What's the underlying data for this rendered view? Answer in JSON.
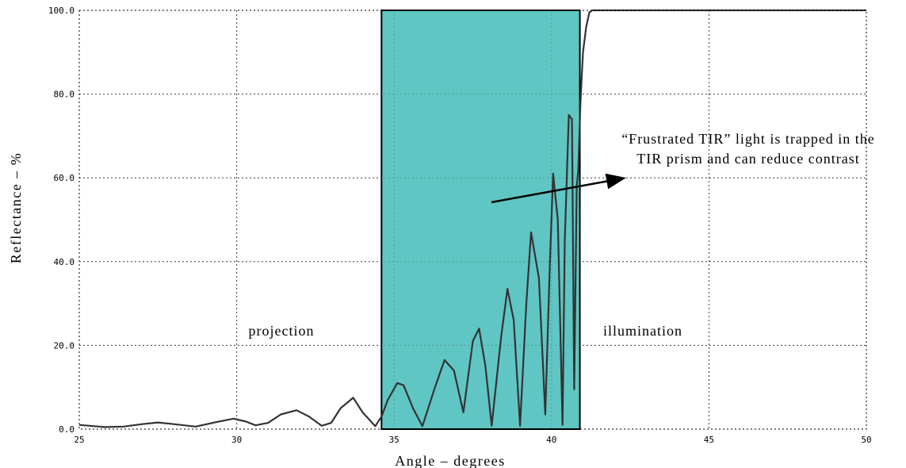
{
  "chart_data": {
    "type": "line",
    "title": "",
    "xlabel": "Angle – degrees",
    "ylabel": "Reflectance – %",
    "xlim": [
      25,
      50
    ],
    "ylim": [
      0,
      100
    ],
    "x_ticks": [
      25,
      30,
      35,
      40,
      45,
      50
    ],
    "x_tick_labels": [
      "25",
      "30",
      "35",
      "40",
      "45",
      "50"
    ],
    "y_ticks": [
      0,
      20,
      40,
      60,
      80,
      100
    ],
    "y_tick_labels": [
      "0.0",
      "20.0",
      "40.0",
      "60.0",
      "80.0",
      "100.0"
    ],
    "grid": true,
    "highlight_region": {
      "x_start": 34.6,
      "x_end": 40.9,
      "y_start": 0,
      "y_end": 100,
      "color": "#5fc6c3"
    },
    "series": [
      {
        "color": "#333333",
        "x": [
          25.0,
          25.8,
          26.4,
          27.0,
          27.5,
          28.0,
          28.7,
          29.3,
          29.9,
          30.3,
          30.6,
          31.0,
          31.4,
          31.9,
          32.3,
          32.7,
          33.0,
          33.3,
          33.7,
          34.0,
          34.4,
          34.6,
          34.8,
          35.1,
          35.3,
          35.6,
          35.9,
          36.3,
          36.6,
          36.9,
          37.2,
          37.5,
          37.7,
          37.9,
          38.1,
          38.4,
          38.6,
          38.8,
          39.0,
          39.2,
          39.35,
          39.6,
          39.8,
          39.95,
          40.05,
          40.2,
          40.35,
          40.42,
          40.55,
          40.65,
          40.72,
          40.8,
          40.85,
          40.92,
          41.0,
          41.1,
          41.2,
          41.3,
          41.5,
          42.0,
          44.0,
          46.0,
          48.0,
          50.0
        ],
        "y": [
          1.0,
          0.5,
          0.6,
          1.2,
          1.6,
          1.2,
          0.6,
          1.6,
          2.5,
          1.8,
          0.9,
          1.5,
          3.5,
          4.5,
          3.0,
          0.8,
          1.5,
          5.0,
          7.5,
          4.0,
          0.7,
          3.0,
          7.0,
          11.0,
          10.5,
          5.0,
          0.7,
          10.0,
          16.5,
          14.0,
          4.0,
          21.0,
          24.0,
          15.0,
          0.8,
          22.0,
          33.5,
          26.0,
          0.8,
          30.0,
          47.0,
          36.0,
          3.5,
          40.0,
          61.0,
          50.0,
          1.0,
          45.0,
          75.0,
          74.0,
          9.5,
          58.0,
          62.0,
          78.0,
          90.0,
          96.0,
          99.5,
          100.0,
          100.0,
          100.0,
          100.0,
          100.0,
          100.0,
          100.0
        ]
      }
    ],
    "annotations": {
      "projection": "projection",
      "illumination": "illumination",
      "note_line1": "“Frustrated TIR” light is trapped in the",
      "note_line2": "TIR prism and can reduce contrast"
    }
  }
}
